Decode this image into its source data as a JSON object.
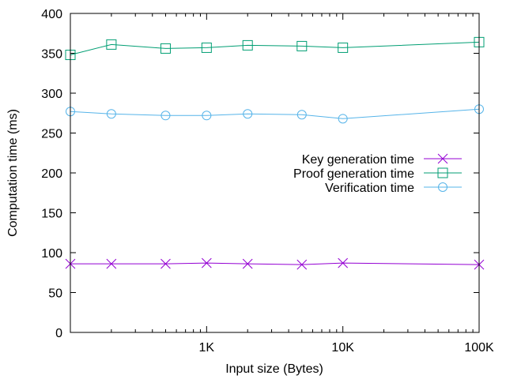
{
  "chart_data": {
    "type": "line",
    "xlabel": "Input size (Bytes)",
    "ylabel": "Computation time (ms)",
    "x_scale": "log",
    "xlim": [
      100,
      100000
    ],
    "ylim": [
      0,
      400
    ],
    "x_ticks": [
      {
        "value": 1000,
        "label": "1K"
      },
      {
        "value": 10000,
        "label": "10K"
      },
      {
        "value": 100000,
        "label": "100K"
      }
    ],
    "y_ticks": [
      {
        "value": 0,
        "label": "0"
      },
      {
        "value": 50,
        "label": "50"
      },
      {
        "value": 100,
        "label": "100"
      },
      {
        "value": 150,
        "label": "150"
      },
      {
        "value": 200,
        "label": "200"
      },
      {
        "value": 250,
        "label": "250"
      },
      {
        "value": 300,
        "label": "300"
      },
      {
        "value": 350,
        "label": "350"
      },
      {
        "value": 400,
        "label": "400"
      }
    ],
    "grid": false,
    "legend_position": "right",
    "x": [
      100,
      200,
      500,
      1000,
      2000,
      5000,
      10000,
      100000
    ],
    "series": [
      {
        "name": "Key generation time",
        "marker": "x-cross",
        "color": "#9400d3",
        "values": [
          86,
          86,
          86,
          87,
          86,
          85,
          87,
          85
        ]
      },
      {
        "name": "Proof generation time",
        "marker": "open-square",
        "color": "#009e73",
        "values": [
          348,
          361,
          356,
          357,
          360,
          359,
          357,
          364
        ]
      },
      {
        "name": "Verification time",
        "marker": "open-circle",
        "color": "#56b4e9",
        "values": [
          277,
          274,
          272,
          272,
          274,
          273,
          268,
          280
        ]
      }
    ]
  }
}
